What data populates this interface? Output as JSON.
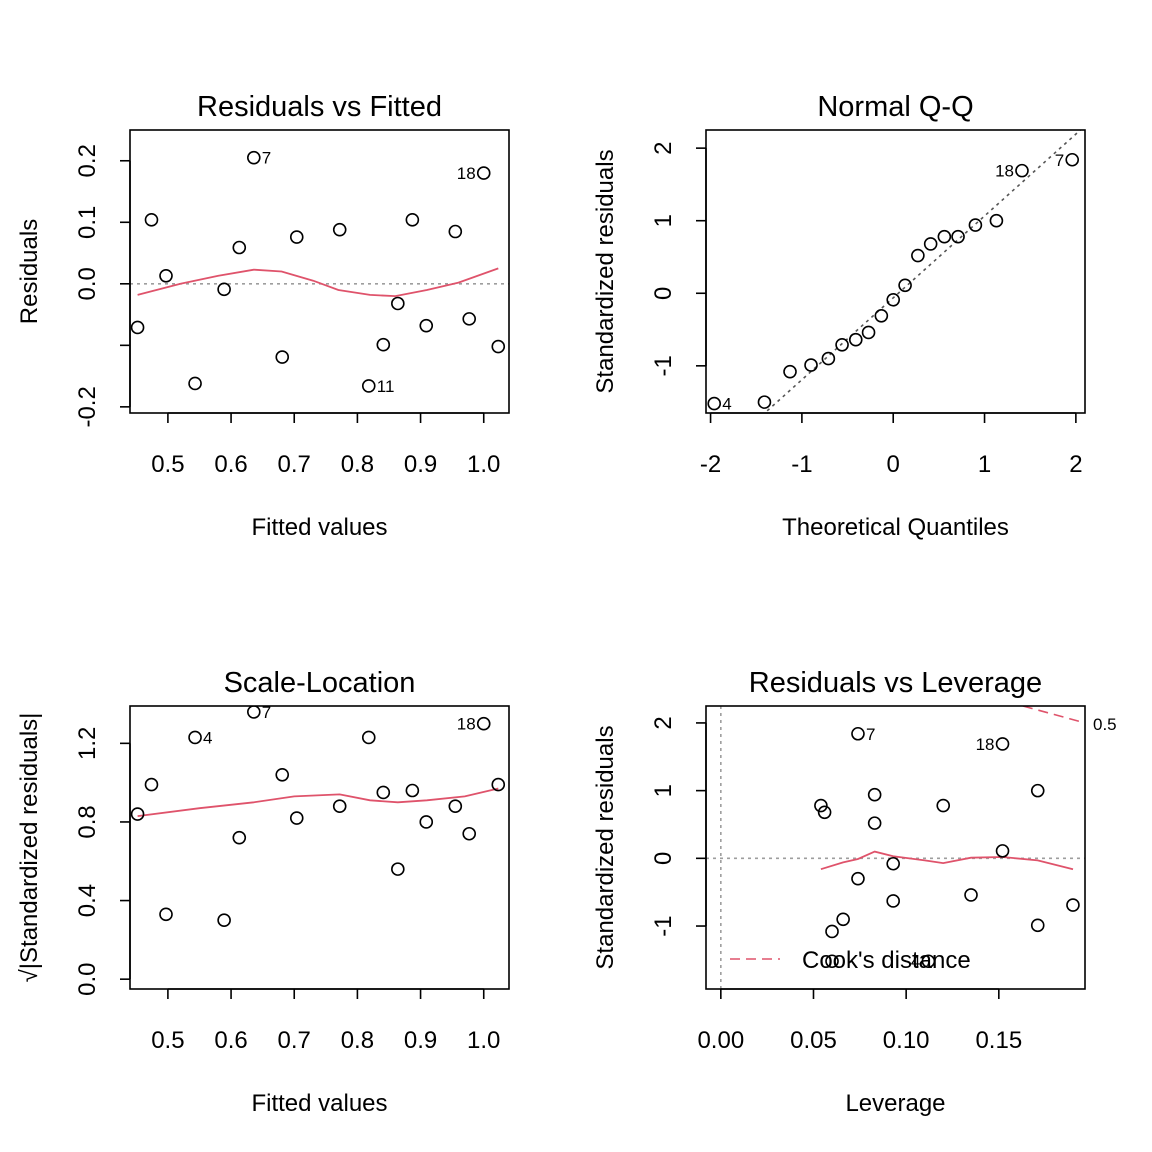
{
  "colors": {
    "smooth": "#DF536B",
    "ref": "#9E9E9E",
    "axis": "#000000",
    "points": "#000000"
  },
  "chart_data": [
    {
      "type": "scatter",
      "title": "Residuals vs Fitted",
      "xlabel": "Fitted values",
      "ylabel": "Residuals",
      "xlim": [
        0.44,
        1.04
      ],
      "ylim": [
        -0.21,
        0.25
      ],
      "xticks": [
        0.5,
        0.6,
        0.7,
        0.8,
        0.9,
        1.0
      ],
      "xticklabels": [
        "0.5",
        "0.6",
        "0.7",
        "0.8",
        "0.9",
        "1.0"
      ],
      "yticks": [
        -0.2,
        -0.1,
        0.0,
        0.1,
        0.2
      ],
      "yticklabels": [
        "-0.2",
        "",
        "0.0",
        "0.1",
        "0.2"
      ],
      "hline": {
        "y": 0,
        "style": "dotted"
      },
      "points": [
        {
          "x": 0.452,
          "y": -0.071
        },
        {
          "x": 0.474,
          "y": 0.104
        },
        {
          "x": 0.497,
          "y": 0.013
        },
        {
          "x": 0.543,
          "y": -0.162
        },
        {
          "x": 0.589,
          "y": -0.009
        },
        {
          "x": 0.613,
          "y": 0.059
        },
        {
          "x": 0.636,
          "y": 0.205
        },
        {
          "x": 0.681,
          "y": -0.119
        },
        {
          "x": 0.704,
          "y": 0.076
        },
        {
          "x": 0.772,
          "y": 0.088
        },
        {
          "x": 0.818,
          "y": -0.166
        },
        {
          "x": 0.841,
          "y": -0.099
        },
        {
          "x": 0.864,
          "y": -0.032
        },
        {
          "x": 0.887,
          "y": 0.104
        },
        {
          "x": 0.909,
          "y": -0.068
        },
        {
          "x": 0.955,
          "y": 0.085
        },
        {
          "x": 0.977,
          "y": -0.057
        },
        {
          "x": 1.0,
          "y": 0.18
        },
        {
          "x": 1.023,
          "y": -0.102
        }
      ],
      "labels": [
        {
          "text": "7",
          "x": 0.636,
          "y": 0.205,
          "side": "right"
        },
        {
          "text": "18",
          "x": 1.0,
          "y": 0.18,
          "side": "left"
        },
        {
          "text": "11",
          "x": 0.818,
          "y": -0.166,
          "side": "right"
        }
      ],
      "smooth": [
        [
          0.452,
          -0.018
        ],
        [
          0.52,
          0.0
        ],
        [
          0.58,
          0.013
        ],
        [
          0.636,
          0.023
        ],
        [
          0.68,
          0.02
        ],
        [
          0.73,
          0.005
        ],
        [
          0.77,
          -0.01
        ],
        [
          0.82,
          -0.018
        ],
        [
          0.86,
          -0.02
        ],
        [
          0.91,
          -0.01
        ],
        [
          0.96,
          0.002
        ],
        [
          1.023,
          0.025
        ]
      ]
    },
    {
      "type": "scatter",
      "title": "Normal Q-Q",
      "xlabel": "Theoretical Quantiles",
      "ylabel": "Standardized residuals",
      "xlim": [
        -2.05,
        2.1
      ],
      "ylim": [
        -1.65,
        2.25
      ],
      "xticks": [
        -2,
        -1,
        0,
        1,
        2
      ],
      "xticklabels": [
        "-2",
        "-1",
        "0",
        "1",
        "2"
      ],
      "yticks": [
        -1,
        0,
        1,
        2
      ],
      "yticklabels": [
        "-1",
        "0",
        "1",
        "2"
      ],
      "refline": {
        "x1": -1.38,
        "y1": -1.62,
        "x2": 2.05,
        "y2": 2.25,
        "style": "dotted"
      },
      "points": [
        {
          "x": -1.96,
          "y": -1.52
        },
        {
          "x": -1.41,
          "y": -1.5
        },
        {
          "x": -1.13,
          "y": -1.08
        },
        {
          "x": -0.9,
          "y": -0.99
        },
        {
          "x": -0.71,
          "y": -0.9
        },
        {
          "x": -0.56,
          "y": -0.71
        },
        {
          "x": -0.41,
          "y": -0.64
        },
        {
          "x": -0.27,
          "y": -0.54
        },
        {
          "x": -0.13,
          "y": -0.31
        },
        {
          "x": 0.0,
          "y": -0.09
        },
        {
          "x": 0.13,
          "y": 0.11
        },
        {
          "x": 0.27,
          "y": 0.52
        },
        {
          "x": 0.41,
          "y": 0.68
        },
        {
          "x": 0.56,
          "y": 0.78
        },
        {
          "x": 0.71,
          "y": 0.78
        },
        {
          "x": 0.9,
          "y": 0.94
        },
        {
          "x": 1.13,
          "y": 1.0
        },
        {
          "x": 1.41,
          "y": 1.69
        },
        {
          "x": 1.96,
          "y": 1.84
        }
      ],
      "labels": [
        {
          "text": "4",
          "x": -1.96,
          "y": -1.52,
          "side": "right"
        },
        {
          "text": "18",
          "x": 1.41,
          "y": 1.69,
          "side": "left"
        },
        {
          "text": "7",
          "x": 1.96,
          "y": 1.84,
          "side": "left"
        }
      ]
    },
    {
      "type": "scatter",
      "title": "Scale-Location",
      "xlabel": "Fitted values",
      "ylabel": "√|Standardized residuals|",
      "xlim": [
        0.44,
        1.04
      ],
      "ylim": [
        -0.05,
        1.39
      ],
      "xticks": [
        0.5,
        0.6,
        0.7,
        0.8,
        0.9,
        1.0
      ],
      "xticklabels": [
        "0.5",
        "0.6",
        "0.7",
        "0.8",
        "0.9",
        "1.0"
      ],
      "yticks": [
        0.0,
        0.4,
        0.8,
        1.2
      ],
      "yticklabels": [
        "0.0",
        "0.4",
        "0.8",
        "1.2"
      ],
      "points": [
        {
          "x": 0.452,
          "y": 0.84
        },
        {
          "x": 0.474,
          "y": 0.99
        },
        {
          "x": 0.497,
          "y": 0.33
        },
        {
          "x": 0.543,
          "y": 1.23
        },
        {
          "x": 0.589,
          "y": 0.3
        },
        {
          "x": 0.613,
          "y": 0.72
        },
        {
          "x": 0.636,
          "y": 1.36
        },
        {
          "x": 0.681,
          "y": 1.04
        },
        {
          "x": 0.704,
          "y": 0.82
        },
        {
          "x": 0.772,
          "y": 0.88
        },
        {
          "x": 0.818,
          "y": 1.23
        },
        {
          "x": 0.841,
          "y": 0.95
        },
        {
          "x": 0.864,
          "y": 0.56
        },
        {
          "x": 0.887,
          "y": 0.96
        },
        {
          "x": 0.909,
          "y": 0.8
        },
        {
          "x": 0.955,
          "y": 0.88
        },
        {
          "x": 0.977,
          "y": 0.74
        },
        {
          "x": 1.0,
          "y": 1.3
        },
        {
          "x": 1.023,
          "y": 0.99
        }
      ],
      "labels": [
        {
          "text": "4",
          "x": 0.543,
          "y": 1.23,
          "side": "right"
        },
        {
          "text": "7",
          "x": 0.636,
          "y": 1.36,
          "side": "right"
        },
        {
          "text": "18",
          "x": 1.0,
          "y": 1.3,
          "side": "left"
        }
      ],
      "smooth": [
        [
          0.452,
          0.83
        ],
        [
          0.55,
          0.87
        ],
        [
          0.636,
          0.9
        ],
        [
          0.7,
          0.93
        ],
        [
          0.772,
          0.94
        ],
        [
          0.82,
          0.91
        ],
        [
          0.864,
          0.9
        ],
        [
          0.91,
          0.91
        ],
        [
          0.97,
          0.93
        ],
        [
          1.023,
          0.97
        ]
      ]
    },
    {
      "type": "scatter",
      "title": "Residuals vs Leverage",
      "xlabel": "Leverage",
      "ylabel": "Standardized residuals",
      "xlim": [
        -0.008,
        0.1965
      ],
      "ylim": [
        -1.93,
        2.25
      ],
      "xticks": [
        0.0,
        0.05,
        0.1,
        0.15
      ],
      "xticklabels": [
        "0.00",
        "0.05",
        "0.10",
        "0.15"
      ],
      "yticks": [
        -1,
        0,
        1,
        2
      ],
      "yticklabels": [
        "-1",
        "0",
        "1",
        "2"
      ],
      "hline": {
        "y": 0,
        "style": "dotted"
      },
      "vline": {
        "x": 0,
        "style": "dotted"
      },
      "points": [
        {
          "x": 0.054,
          "y": 0.78
        },
        {
          "x": 0.056,
          "y": 0.68
        },
        {
          "x": 0.06,
          "y": -1.08
        },
        {
          "x": 0.06,
          "y": -1.52
        },
        {
          "x": 0.066,
          "y": -0.9
        },
        {
          "x": 0.074,
          "y": 1.84
        },
        {
          "x": 0.074,
          "y": -0.3
        },
        {
          "x": 0.083,
          "y": 0.94
        },
        {
          "x": 0.083,
          "y": 0.52
        },
        {
          "x": 0.093,
          "y": -0.08
        },
        {
          "x": 0.093,
          "y": -0.63
        },
        {
          "x": 0.112,
          "y": -1.52
        },
        {
          "x": 0.12,
          "y": 0.78
        },
        {
          "x": 0.135,
          "y": -0.54
        },
        {
          "x": 0.152,
          "y": 1.69
        },
        {
          "x": 0.152,
          "y": 0.11
        },
        {
          "x": 0.171,
          "y": 1.0
        },
        {
          "x": 0.171,
          "y": -0.99
        },
        {
          "x": 0.19,
          "y": -0.69
        }
      ],
      "labels": [
        {
          "text": "7",
          "x": 0.074,
          "y": 1.84,
          "side": "right"
        },
        {
          "text": "18",
          "x": 0.152,
          "y": 1.69,
          "side": "left"
        },
        {
          "text": "4",
          "x": 0.112,
          "y": -1.52,
          "side": "left"
        }
      ],
      "smooth": [
        [
          0.054,
          -0.16
        ],
        [
          0.066,
          -0.06
        ],
        [
          0.074,
          -0.01
        ],
        [
          0.083,
          0.1
        ],
        [
          0.093,
          0.03
        ],
        [
          0.11,
          -0.03
        ],
        [
          0.12,
          -0.07
        ],
        [
          0.135,
          0.01
        ],
        [
          0.152,
          0.02
        ],
        [
          0.171,
          -0.03
        ],
        [
          0.19,
          -0.16
        ]
      ],
      "cook_contour": {
        "points": [
          [
            0.163,
            2.25
          ],
          [
            0.1965,
            2.0
          ]
        ],
        "label": "0.5"
      },
      "legend": {
        "text": "Cook's distance",
        "position": "bottom-left"
      }
    }
  ]
}
